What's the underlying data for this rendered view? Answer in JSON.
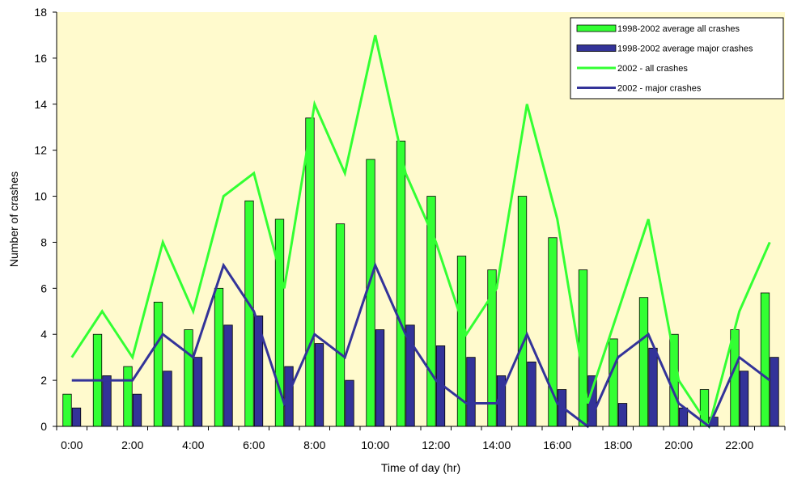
{
  "chart_data": {
    "type": "bar+line",
    "title": "",
    "xlabel": "Time of day (hr)",
    "ylabel": "Number of crashes",
    "ylim": [
      0,
      18
    ],
    "yticks": [
      0,
      2,
      4,
      6,
      8,
      10,
      12,
      14,
      16,
      18
    ],
    "hours": [
      0,
      1,
      2,
      3,
      4,
      5,
      6,
      7,
      8,
      9,
      10,
      11,
      12,
      13,
      14,
      15,
      16,
      17,
      18,
      19,
      20,
      21,
      22,
      23
    ],
    "xtick_labels": [
      "0:00",
      "2:00",
      "4:00",
      "6:00",
      "8:00",
      "10:00",
      "12:00",
      "14:00",
      "16:00",
      "18:00",
      "20:00",
      "22:00"
    ],
    "grid": false,
    "legend_placement": "top-right",
    "plot_background": "#fffacd",
    "series": [
      {
        "name": "1998-2002 average all crashes",
        "kind": "bar",
        "color": "#33ff33",
        "values": [
          1.4,
          4.0,
          2.6,
          5.4,
          4.2,
          6.0,
          9.8,
          9.0,
          13.4,
          8.8,
          11.6,
          12.4,
          10.0,
          7.4,
          6.8,
          10.0,
          8.2,
          6.8,
          3.8,
          5.6,
          4.0,
          1.6,
          4.2,
          5.8
        ]
      },
      {
        "name": "1998-2002 average major crashes",
        "kind": "bar",
        "color": "#333399",
        "values": [
          0.8,
          2.2,
          1.4,
          2.4,
          3.0,
          4.4,
          4.8,
          2.6,
          3.6,
          2.0,
          4.2,
          4.4,
          3.5,
          3.0,
          2.2,
          2.8,
          1.6,
          2.2,
          1.0,
          3.4,
          0.8,
          0.4,
          2.4,
          3.0
        ]
      },
      {
        "name": "2002 - all crashes",
        "kind": "line",
        "color": "#33ff33",
        "values": [
          3,
          5,
          3,
          8,
          5,
          10,
          11,
          6,
          14,
          11,
          17,
          11,
          8,
          4,
          6,
          14,
          9,
          1,
          5,
          9,
          2,
          0,
          5,
          8
        ]
      },
      {
        "name": "2002 - major crashes",
        "kind": "line",
        "color": "#333399",
        "values": [
          2,
          2,
          2,
          4,
          3,
          7,
          5,
          1,
          4,
          3,
          7,
          4,
          2,
          1,
          1,
          4,
          1,
          0,
          3,
          4,
          1,
          0,
          3,
          2
        ]
      }
    ]
  }
}
